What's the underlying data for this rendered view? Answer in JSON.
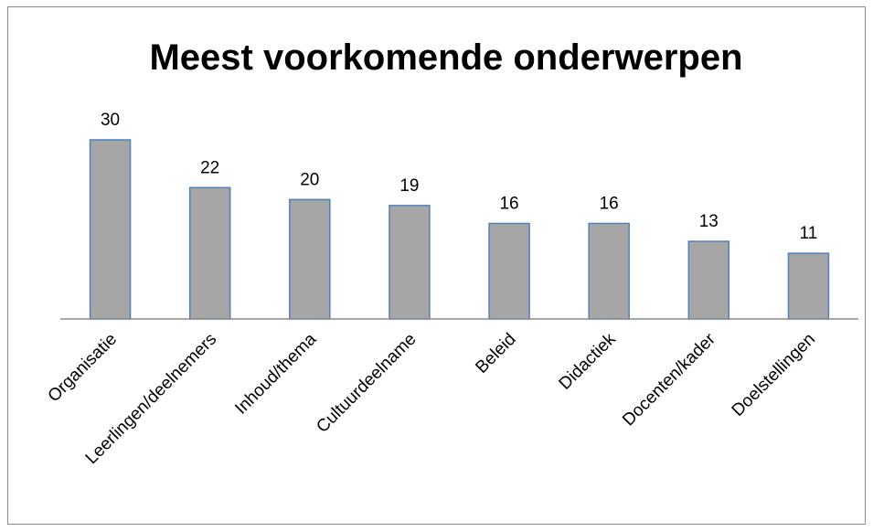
{
  "chart_data": {
    "type": "bar",
    "title": "Meest voorkomende onderwerpen",
    "categories": [
      "Organisatie",
      "Leerlingen/deelnemers",
      "Inhoud/thema",
      "Cultuurdeelname",
      "Beleid",
      "Didactiek",
      "Docenten/kader",
      "Doelstellingen"
    ],
    "values": [
      30,
      22,
      20,
      19,
      16,
      16,
      13,
      11
    ],
    "color": "#a6a6a6",
    "edge_color": "#4f81bd",
    "ylim": [
      0,
      30
    ]
  }
}
